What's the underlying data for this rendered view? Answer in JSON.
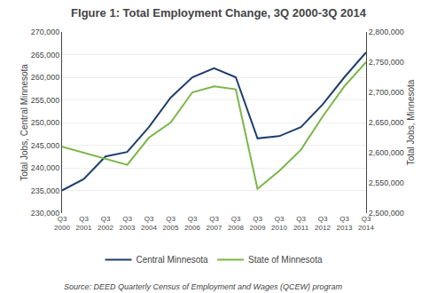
{
  "chart_data": {
    "type": "line",
    "title": "FIgure 1: Total Employment Change, 3Q 2000-3Q 2014",
    "categories": [
      "Q3\n2000",
      "Q3\n2001",
      "Q3\n2002",
      "Q3\n2003",
      "Q3\n2004",
      "Q3\n2005",
      "Q3\n2006",
      "Q3\n2007",
      "Q3\n2008",
      "Q3\n2009",
      "Q3\n2010",
      "Q3\n2011",
      "Q3\n2012",
      "Q3\n2013",
      "Q3\n2014"
    ],
    "series": [
      {
        "name": "Central Minnesota",
        "color": "#1f3e6e",
        "axis": "y",
        "values": [
          235000,
          237500,
          242500,
          243500,
          249000,
          255500,
          260000,
          262000,
          260000,
          246500,
          247000,
          249000,
          254000,
          260000,
          265500
        ]
      },
      {
        "name": "State of Minnesota",
        "color": "#7ab648",
        "axis": "y2",
        "values": [
          2610000,
          2600000,
          2590000,
          2580000,
          2625000,
          2650000,
          2700000,
          2710000,
          2705000,
          2540000,
          2570000,
          2605000,
          2660000,
          2710000,
          2750000
        ]
      }
    ],
    "ylabel": "Total Jobs, Central Minnesota",
    "y2label": "Total Jobs, Minnesota",
    "ylim": [
      230000,
      270000
    ],
    "yticks": [
      {
        "value": 230000,
        "label": "230,000"
      },
      {
        "value": 235000,
        "label": "235,000"
      },
      {
        "value": 240000,
        "label": "240,000"
      },
      {
        "value": 245000,
        "label": "245,000"
      },
      {
        "value": 250000,
        "label": "250,000"
      },
      {
        "value": 255000,
        "label": "255,000"
      },
      {
        "value": 260000,
        "label": "260,000"
      },
      {
        "value": 265000,
        "label": "265,000"
      },
      {
        "value": 270000,
        "label": "270,000"
      }
    ],
    "y2lim": [
      2500000,
      2800000
    ],
    "y2ticks": [
      {
        "value": 2500000,
        "label": "2,500,000"
      },
      {
        "value": 2550000,
        "label": "2,550,000"
      },
      {
        "value": 2600000,
        "label": "2,600,000"
      },
      {
        "value": 2650000,
        "label": "2,650,000"
      },
      {
        "value": 2700000,
        "label": "2,700,000"
      },
      {
        "value": 2750000,
        "label": "2,750,000"
      },
      {
        "value": 2800000,
        "label": "2,800,000"
      }
    ],
    "grid": true,
    "legend": "bottom",
    "annotations": [
      "Source: DEED Quarterly Census of Employment and Wages (QCEW) program"
    ]
  }
}
